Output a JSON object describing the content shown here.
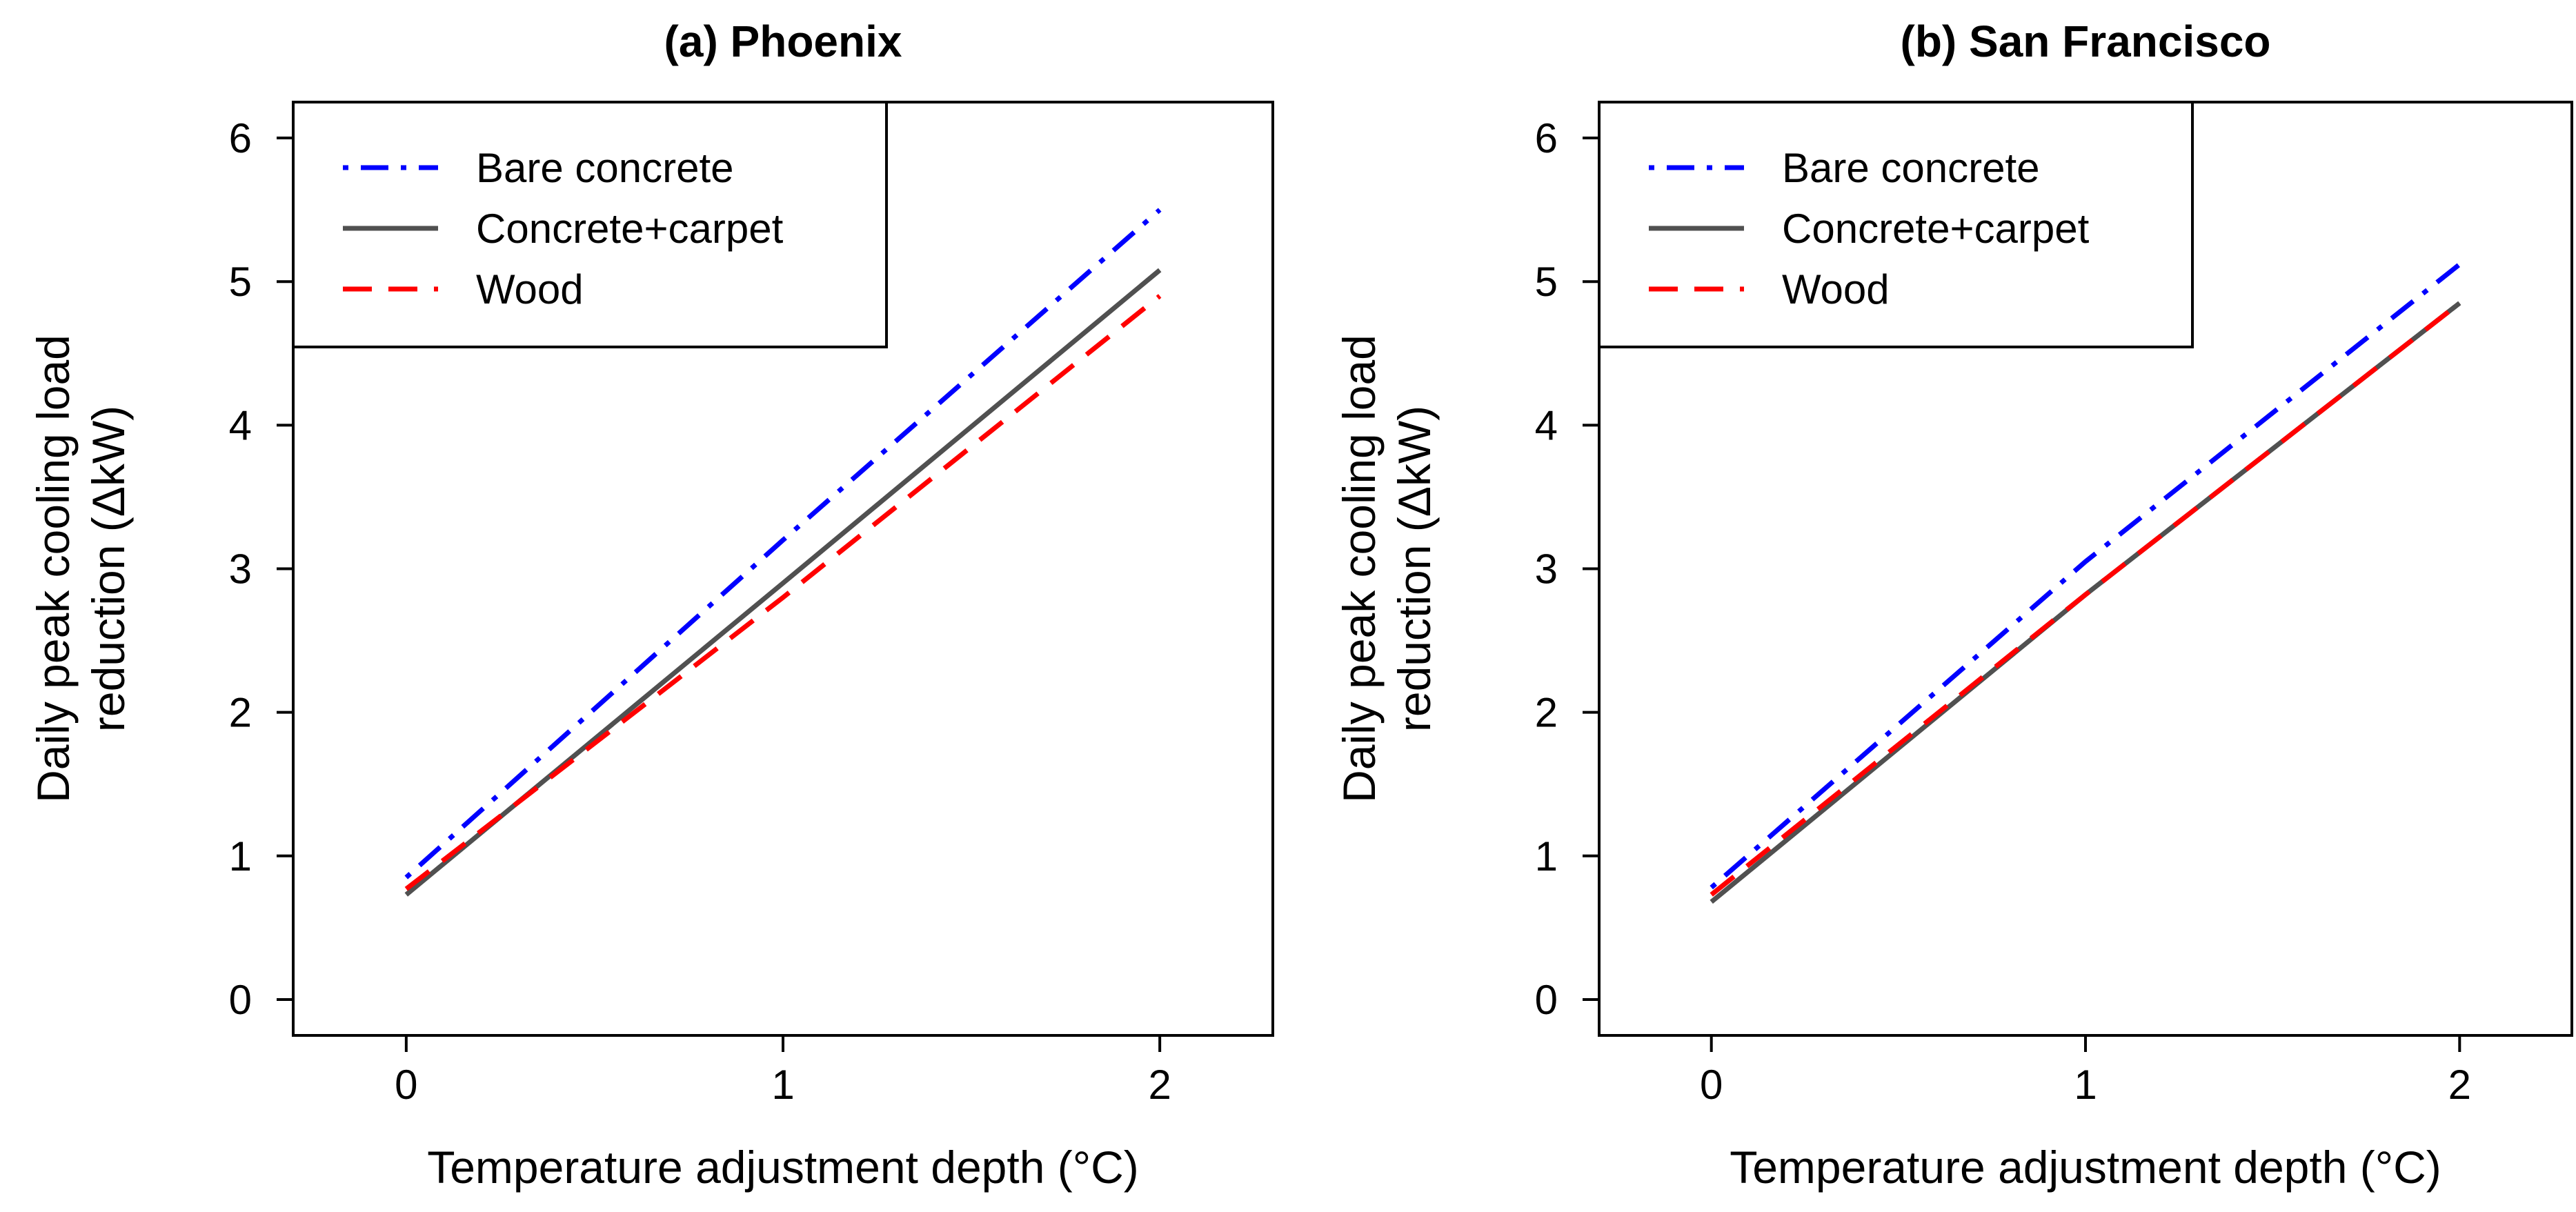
{
  "chart_data": [
    {
      "type": "line",
      "title": "(a) Phoenix",
      "xlabel": "Temperature adjustment depth (°C)",
      "ylabel_lines": [
        "Daily peak cooling load",
        "reduction (ΔkW)"
      ],
      "xlim": [
        -0.3,
        2.3
      ],
      "ylim": [
        -0.25,
        6.25
      ],
      "x_ticks": [
        "0",
        "1",
        "2"
      ],
      "y_ticks": [
        "0",
        "1",
        "2",
        "3",
        "4",
        "5",
        "6"
      ],
      "legend": "top-left",
      "series": [
        {
          "name": "Bare concrete",
          "color": "#0000ff",
          "dash": "dotdash",
          "x": [
            0,
            1,
            2
          ],
          "y": [
            0.85,
            3.2,
            5.5
          ]
        },
        {
          "name": "Concrete+carpet",
          "color": "#505050",
          "dash": "solid",
          "x": [
            0,
            1,
            2
          ],
          "y": [
            0.73,
            2.9,
            5.08
          ]
        },
        {
          "name": "Wood",
          "color": "#ff0000",
          "dash": "dashed",
          "x": [
            0,
            1,
            2
          ],
          "y": [
            0.77,
            2.8,
            4.9
          ]
        }
      ]
    },
    {
      "type": "line",
      "title": "(b) San Francisco",
      "xlabel": "Temperature adjustment depth (°C)",
      "ylabel_lines": [
        "Daily peak cooling load",
        "reduction (ΔkW)"
      ],
      "xlim": [
        -0.3,
        2.3
      ],
      "ylim": [
        -0.25,
        6.25
      ],
      "x_ticks": [
        "0",
        "1",
        "2"
      ],
      "y_ticks": [
        "0",
        "1",
        "2",
        "3",
        "4",
        "5",
        "6"
      ],
      "legend": "top-left",
      "series": [
        {
          "name": "Bare concrete",
          "color": "#0000ff",
          "dash": "dotdash",
          "x": [
            0,
            1,
            2
          ],
          "y": [
            0.78,
            3.05,
            5.12
          ]
        },
        {
          "name": "Concrete+carpet",
          "color": "#505050",
          "dash": "solid",
          "x": [
            0,
            1,
            2
          ],
          "y": [
            0.68,
            2.82,
            4.85
          ]
        },
        {
          "name": "Wood",
          "color": "#ff0000",
          "dash": "dashed",
          "x": [
            0,
            1,
            2
          ],
          "y": [
            0.73,
            2.82,
            4.85
          ]
        }
      ]
    }
  ]
}
